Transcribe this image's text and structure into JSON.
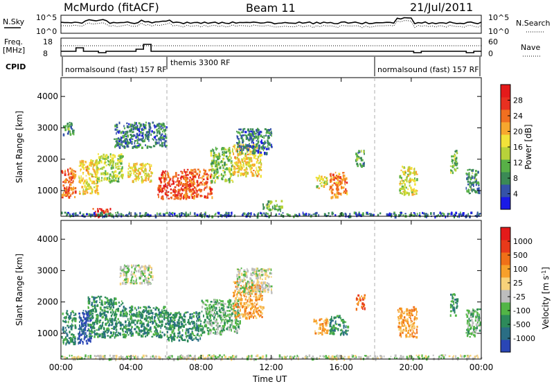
{
  "header": {
    "station": "McMurdo (fitACF)",
    "beam": "Beam 11",
    "date": "21/Jul/2011"
  },
  "top_panels": {
    "sky_label": "N.Sky",
    "sky_ticks": [
      "10^5",
      "10^0"
    ],
    "search_label": "N.Search",
    "search_ticks": [
      "10^5",
      "10^0"
    ],
    "freq_label_1": "Freq.",
    "freq_label_2": "[MHz]",
    "freq_ticks": [
      "18",
      "8"
    ],
    "nave_label": "Nave",
    "nave_ticks": [
      "60",
      "0"
    ],
    "cpid_label": "CPID",
    "cpid_segments": [
      {
        "label": "normalsound (fast) 157 RF",
        "start_hour": 0,
        "end_hour": 6
      },
      {
        "label": "themis 3300 RF",
        "start_hour": 6,
        "end_hour": 18
      },
      {
        "label": "normalsound (fast) 157 RF",
        "start_hour": 18,
        "end_hour": 24
      }
    ]
  },
  "chart_data": [
    {
      "type": "heatmap",
      "panel": "power",
      "ylabel": "Slant Range [km]",
      "xlabel": "Time UT",
      "x_ticks": [
        "00:00",
        "04:00",
        "08:00",
        "12:00",
        "16:00",
        "20:00",
        "00:00"
      ],
      "y_ticks": [
        1000,
        2000,
        3000,
        4000
      ],
      "xlim_hours": [
        0,
        24
      ],
      "ylim_km": [
        180,
        4600
      ],
      "colorbar": {
        "label": "Power [dB]",
        "ticks": [
          4,
          8,
          12,
          16,
          20,
          24,
          28
        ],
        "range": [
          0,
          32
        ],
        "colors": [
          "#1a1ae6",
          "#3552a8",
          "#3b8a55",
          "#58b047",
          "#b8d23a",
          "#f2e23a",
          "#f7a72e",
          "#f06f20",
          "#e83020",
          "#e41a1a"
        ]
      },
      "regions": [
        {
          "t": [
            0.0,
            0.8
          ],
          "r": [
            800,
            1750
          ],
          "level": 25
        },
        {
          "t": [
            0.1,
            0.7
          ],
          "r": [
            2800,
            3200
          ],
          "level": 8
        },
        {
          "t": [
            1.0,
            2.1
          ],
          "r": [
            900,
            2000
          ],
          "level": 18
        },
        {
          "t": [
            1.8,
            2.8
          ],
          "r": [
            200,
            450
          ],
          "level": 30
        },
        {
          "t": [
            2.0,
            3.5
          ],
          "r": [
            1300,
            2200
          ],
          "level": 14
        },
        {
          "t": [
            3.0,
            6.0
          ],
          "r": [
            2400,
            3200
          ],
          "level": 6
        },
        {
          "t": [
            3.8,
            5.2
          ],
          "r": [
            1300,
            1900
          ],
          "level": 18
        },
        {
          "t": [
            5.5,
            7.2
          ],
          "r": [
            750,
            1650
          ],
          "level": 28
        },
        {
          "t": [
            7.0,
            8.6
          ],
          "r": [
            800,
            1700
          ],
          "level": 26
        },
        {
          "t": [
            8.5,
            9.8
          ],
          "r": [
            1300,
            2400
          ],
          "level": 12
        },
        {
          "t": [
            9.8,
            11.4
          ],
          "r": [
            1500,
            2500
          ],
          "level": 18
        },
        {
          "t": [
            10.0,
            12.0
          ],
          "r": [
            2200,
            3000
          ],
          "level": 6
        },
        {
          "t": [
            11.5,
            12.6
          ],
          "r": [
            400,
            700
          ],
          "level": 10
        },
        {
          "t": [
            14.5,
            15.2
          ],
          "r": [
            1100,
            1500
          ],
          "level": 16
        },
        {
          "t": [
            15.3,
            16.3
          ],
          "r": [
            800,
            1600
          ],
          "level": 24
        },
        {
          "t": [
            16.8,
            17.3
          ],
          "r": [
            1800,
            2300
          ],
          "level": 8
        },
        {
          "t": [
            19.3,
            20.3
          ],
          "r": [
            900,
            1800
          ],
          "level": 16
        },
        {
          "t": [
            22.2,
            22.6
          ],
          "r": [
            1600,
            2300
          ],
          "level": 12
        },
        {
          "t": [
            23.1,
            23.9
          ],
          "r": [
            900,
            1700
          ],
          "level": 8
        },
        {
          "t": [
            0.0,
            24.0
          ],
          "r": [
            200,
            330
          ],
          "level": 5
        }
      ]
    },
    {
      "type": "heatmap",
      "panel": "velocity",
      "ylabel": "Slant Range [km]",
      "xlabel": "Time UT",
      "x_ticks": [
        "00:00",
        "04:00",
        "08:00",
        "12:00",
        "16:00",
        "20:00",
        "00:00"
      ],
      "y_ticks": [
        1000,
        2000,
        3000,
        4000
      ],
      "xlim_hours": [
        0,
        24
      ],
      "ylim_km": [
        180,
        4600
      ],
      "colorbar": {
        "label": "Velocity [m s",
        "label_superscript": "-1",
        "label_end": "]",
        "ticks": [
          "1000",
          "500",
          "100",
          "25",
          "-25",
          "-100",
          "-500",
          "-1000"
        ],
        "colors": [
          "#2a46b5",
          "#2a6e84",
          "#2d8a5a",
          "#52b546",
          "#bdbdbd",
          "#f7d27a",
          "#f7a02a",
          "#f07018",
          "#e83a1a",
          "#e41a1a"
        ]
      },
      "regions": [
        {
          "t": [
            0.0,
            0.8
          ],
          "r": [
            700,
            1750
          ],
          "level": 2
        },
        {
          "t": [
            0.9,
            1.7
          ],
          "r": [
            700,
            1750
          ],
          "level": 0
        },
        {
          "t": [
            1.5,
            3.5
          ],
          "r": [
            900,
            2200
          ],
          "level": 2
        },
        {
          "t": [
            3.3,
            5.2
          ],
          "r": [
            2600,
            3200
          ],
          "level": 4
        },
        {
          "t": [
            3.5,
            6.0
          ],
          "r": [
            900,
            1900
          ],
          "level": 2
        },
        {
          "t": [
            6.0,
            8.0
          ],
          "r": [
            800,
            1700
          ],
          "level": 2
        },
        {
          "t": [
            8.0,
            10.2
          ],
          "r": [
            1000,
            2100
          ],
          "level": 3
        },
        {
          "t": [
            9.8,
            11.5
          ],
          "r": [
            1500,
            2700
          ],
          "level": 6
        },
        {
          "t": [
            10.0,
            12.0
          ],
          "r": [
            2300,
            3100
          ],
          "level": 4
        },
        {
          "t": [
            14.4,
            15.2
          ],
          "r": [
            1000,
            1500
          ],
          "level": 6
        },
        {
          "t": [
            15.3,
            16.4
          ],
          "r": [
            1000,
            1600
          ],
          "level": 2
        },
        {
          "t": [
            16.8,
            17.3
          ],
          "r": [
            1800,
            2300
          ],
          "level": 7
        },
        {
          "t": [
            19.2,
            20.3
          ],
          "r": [
            900,
            1900
          ],
          "level": 6
        },
        {
          "t": [
            22.2,
            22.6
          ],
          "r": [
            1600,
            2300
          ],
          "level": 2
        },
        {
          "t": [
            23.1,
            23.9
          ],
          "r": [
            900,
            1800
          ],
          "level": 3
        },
        {
          "t": [
            0.0,
            24.0
          ],
          "r": [
            200,
            330
          ],
          "level": 4
        }
      ]
    }
  ]
}
